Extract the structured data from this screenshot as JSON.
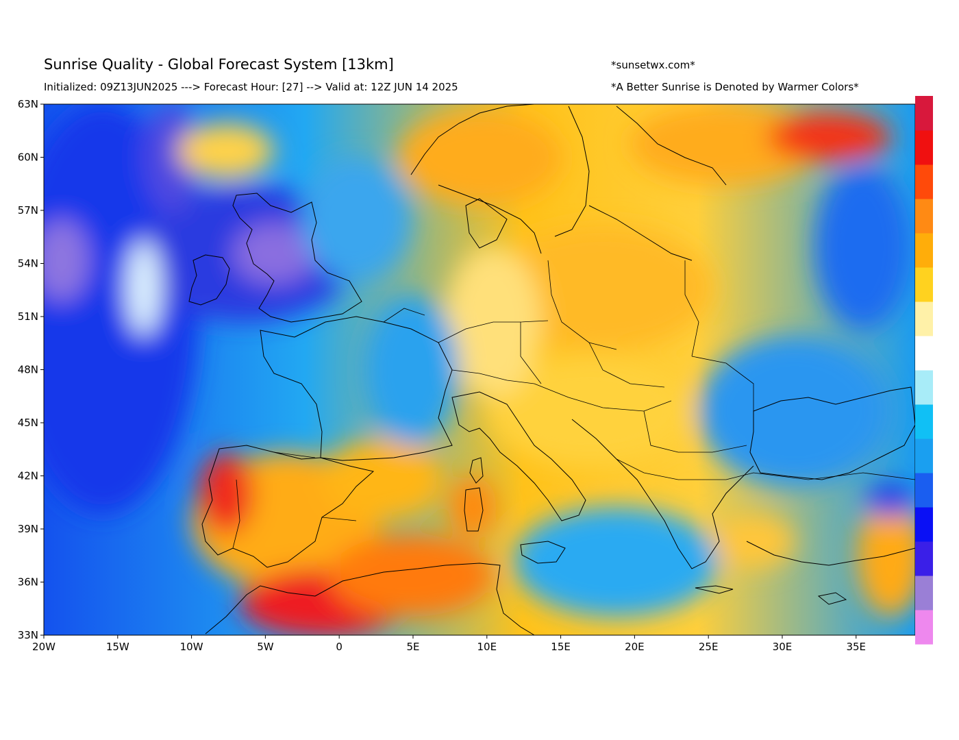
{
  "header": {
    "title": "Sunrise Quality - Global Forecast System [13km]",
    "subtitle": "Initialized: 09Z13JUN2025 ---> Forecast Hour: [27] --> Valid at: 12Z JUN 14 2025",
    "site": "*sunsetwx.com*",
    "note": "*A Better Sunrise is Denoted by Warmer Colors*"
  },
  "map": {
    "lon_range": [
      -20,
      39
    ],
    "lat_range": [
      33,
      63
    ],
    "lon_ticks": [
      "20W",
      "15W",
      "10W",
      "5W",
      "0",
      "5E",
      "10E",
      "15E",
      "20E",
      "25E",
      "30E",
      "35E"
    ],
    "lon_tick_values": [
      -20,
      -15,
      -10,
      -5,
      0,
      5,
      10,
      15,
      20,
      25,
      30,
      35
    ],
    "lat_ticks": [
      "33N",
      "36N",
      "39N",
      "42N",
      "45N",
      "48N",
      "51N",
      "54N",
      "57N",
      "60N",
      "63N"
    ],
    "lat_tick_values": [
      33,
      36,
      39,
      42,
      45,
      48,
      51,
      54,
      57,
      60,
      63
    ],
    "colorbar_colors": [
      "#ee88ee",
      "#9a7fd6",
      "#3a1fe8",
      "#0a10f5",
      "#1a5ef0",
      "#1a9ff0",
      "#10c0f5",
      "#a8ecf8",
      "#ffffff",
      "#fff1a8",
      "#ffd21f",
      "#ffad0a",
      "#ff8a14",
      "#ff4a0a",
      "#f01010",
      "#d8183c"
    ]
  }
}
